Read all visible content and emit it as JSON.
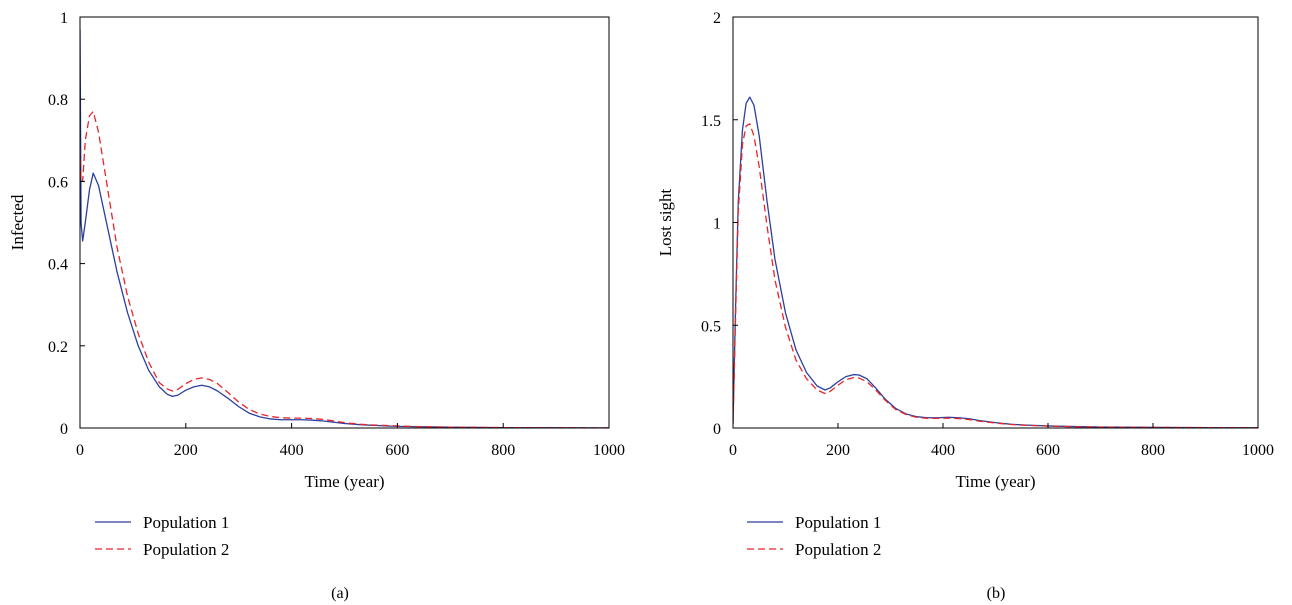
{
  "chart_data": [
    {
      "type": "line",
      "panel_label": "(a)",
      "title": "",
      "xlabel": "Time (year)",
      "ylabel": "Infected",
      "xlim": [
        0,
        1000
      ],
      "ylim": [
        0,
        1
      ],
      "xticks": [
        0,
        200,
        400,
        600,
        800,
        1000
      ],
      "yticks": [
        0,
        0.2,
        0.4,
        0.6,
        0.8,
        1
      ],
      "xtick_labels": [
        "0",
        "200",
        "400",
        "600",
        "800",
        "1000"
      ],
      "ytick_labels": [
        "0",
        "0.2",
        "0.4",
        "0.6",
        "0.8",
        "1"
      ],
      "grid": false,
      "legend_position": "below-left",
      "series": [
        {
          "name": "Population 1",
          "color": "#2b3f9e",
          "dash": "solid",
          "x": [
            0,
            2,
            5,
            10,
            18,
            25,
            35,
            50,
            70,
            90,
            110,
            130,
            150,
            165,
            175,
            185,
            200,
            215,
            230,
            245,
            260,
            280,
            300,
            320,
            340,
            360,
            380,
            400,
            420,
            440,
            460,
            480,
            500,
            530,
            560,
            600,
            650,
            700,
            800,
            900,
            1000
          ],
          "y": [
            0.97,
            0.5,
            0.455,
            0.5,
            0.58,
            0.62,
            0.59,
            0.5,
            0.38,
            0.28,
            0.2,
            0.14,
            0.1,
            0.082,
            0.077,
            0.08,
            0.092,
            0.1,
            0.104,
            0.1,
            0.09,
            0.072,
            0.052,
            0.036,
            0.027,
            0.022,
            0.02,
            0.02,
            0.02,
            0.019,
            0.017,
            0.014,
            0.011,
            0.008,
            0.006,
            0.004,
            0.003,
            0.002,
            0.001,
            0.0005,
            0.0003
          ]
        },
        {
          "name": "Population 2",
          "color": "#e8252b",
          "dash": "dashed",
          "x": [
            0,
            2,
            5,
            10,
            18,
            25,
            35,
            50,
            70,
            90,
            110,
            130,
            150,
            165,
            175,
            185,
            200,
            215,
            230,
            245,
            260,
            280,
            300,
            320,
            340,
            360,
            380,
            400,
            420,
            440,
            460,
            480,
            500,
            530,
            560,
            600,
            650,
            700,
            800,
            900,
            1000
          ],
          "y": [
            0.68,
            0.6,
            0.6,
            0.7,
            0.76,
            0.77,
            0.72,
            0.6,
            0.44,
            0.32,
            0.23,
            0.16,
            0.11,
            0.095,
            0.09,
            0.094,
            0.108,
            0.118,
            0.122,
            0.118,
            0.108,
            0.086,
            0.063,
            0.045,
            0.034,
            0.028,
            0.025,
            0.024,
            0.024,
            0.023,
            0.021,
            0.017,
            0.013,
            0.009,
            0.007,
            0.005,
            0.003,
            0.002,
            0.001,
            0.0005,
            0.0003
          ]
        }
      ]
    },
    {
      "type": "line",
      "panel_label": "(b)",
      "title": "",
      "xlabel": "Time (year)",
      "ylabel": "Lost sight",
      "xlim": [
        0,
        1000
      ],
      "ylim": [
        0,
        2
      ],
      "xticks": [
        0,
        200,
        400,
        600,
        800,
        1000
      ],
      "yticks": [
        0,
        0.5,
        1,
        1.5,
        2
      ],
      "xtick_labels": [
        "0",
        "200",
        "400",
        "600",
        "800",
        "1000"
      ],
      "ytick_labels": [
        "0",
        "0.5",
        "1",
        "1.5",
        "2"
      ],
      "grid": false,
      "legend_position": "below-left",
      "series": [
        {
          "name": "Population 1",
          "color": "#2b3f9e",
          "dash": "solid",
          "x": [
            0,
            5,
            10,
            18,
            25,
            32,
            40,
            50,
            65,
            80,
            100,
            120,
            140,
            160,
            175,
            185,
            200,
            215,
            230,
            240,
            255,
            270,
            290,
            310,
            330,
            350,
            370,
            390,
            410,
            430,
            450,
            470,
            500,
            530,
            560,
            600,
            650,
            700,
            800,
            900,
            1000
          ],
          "y": [
            0.02,
            0.6,
            1.1,
            1.45,
            1.58,
            1.61,
            1.57,
            1.42,
            1.1,
            0.82,
            0.56,
            0.38,
            0.27,
            0.205,
            0.185,
            0.195,
            0.225,
            0.25,
            0.26,
            0.258,
            0.24,
            0.2,
            0.14,
            0.095,
            0.068,
            0.055,
            0.05,
            0.05,
            0.052,
            0.05,
            0.045,
            0.036,
            0.026,
            0.018,
            0.014,
            0.01,
            0.007,
            0.005,
            0.003,
            0.002,
            0.001
          ]
        },
        {
          "name": "Population 2",
          "color": "#e8252b",
          "dash": "dashed",
          "x": [
            0,
            5,
            10,
            18,
            25,
            32,
            40,
            50,
            65,
            80,
            100,
            120,
            140,
            160,
            175,
            185,
            200,
            215,
            230,
            240,
            255,
            270,
            290,
            310,
            330,
            350,
            370,
            390,
            410,
            430,
            450,
            470,
            500,
            530,
            560,
            600,
            650,
            700,
            800,
            900,
            1000
          ],
          "y": [
            0.02,
            0.55,
            1.05,
            1.38,
            1.47,
            1.48,
            1.42,
            1.27,
            0.98,
            0.72,
            0.49,
            0.33,
            0.24,
            0.185,
            0.168,
            0.178,
            0.208,
            0.235,
            0.245,
            0.243,
            0.225,
            0.19,
            0.135,
            0.09,
            0.065,
            0.052,
            0.047,
            0.047,
            0.048,
            0.046,
            0.041,
            0.033,
            0.024,
            0.017,
            0.013,
            0.009,
            0.006,
            0.004,
            0.003,
            0.002,
            0.001
          ]
        }
      ]
    }
  ]
}
